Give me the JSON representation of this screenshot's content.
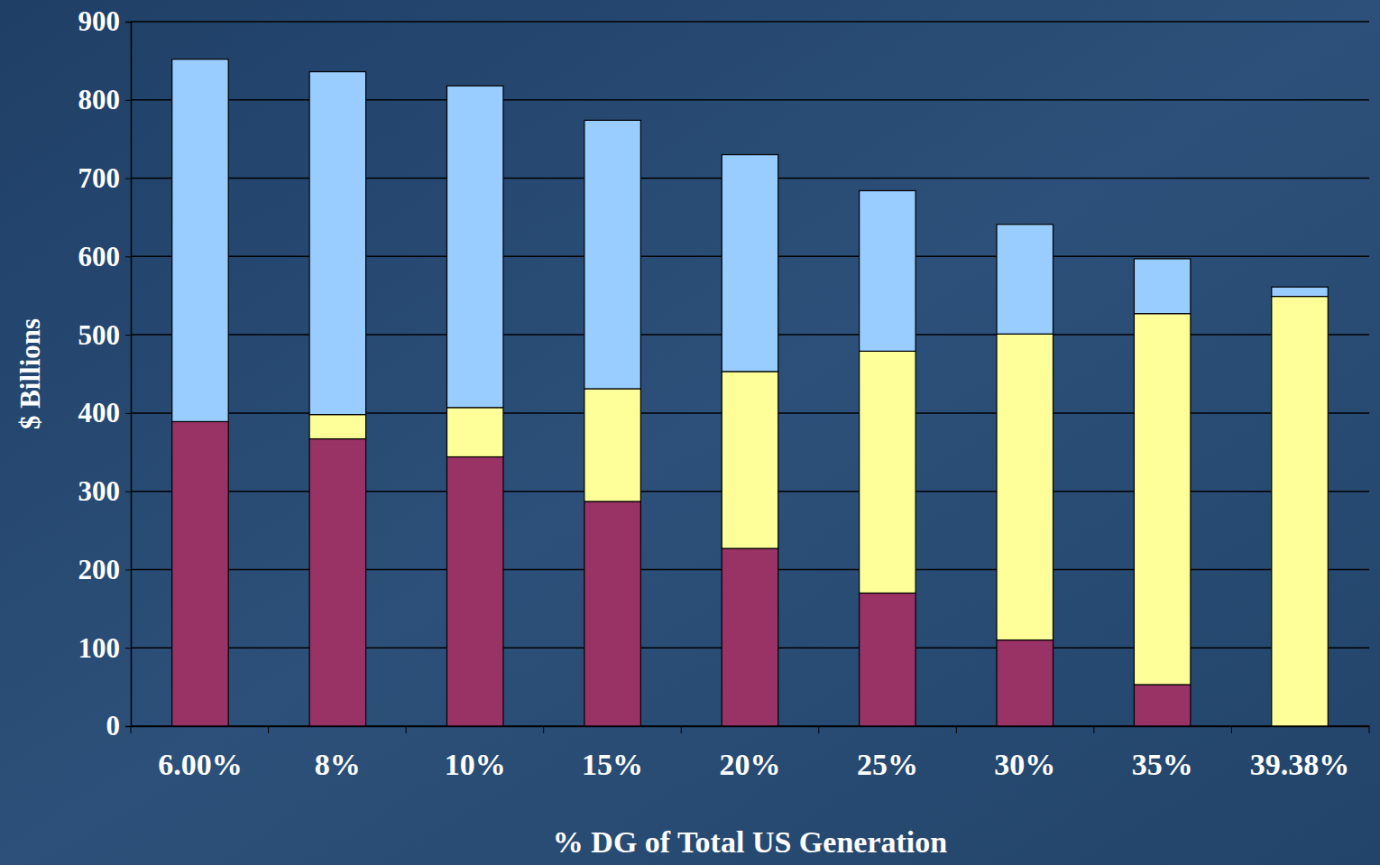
{
  "chart_data": {
    "type": "bar",
    "stacked": true,
    "grid": true,
    "x_label": "% DG of Total US Generation",
    "y_label": "$ Billions",
    "categories": [
      "6.00%",
      "8%",
      "10%",
      "15%",
      "20%",
      "25%",
      "30%",
      "35%",
      "39.38%"
    ],
    "series": [
      {
        "color": "#993366",
        "values": [
          389,
          367,
          344,
          287,
          227,
          170,
          110,
          53,
          0
        ]
      },
      {
        "color": "#ffff99",
        "values": [
          0,
          31,
          63,
          144,
          226,
          309,
          391,
          474,
          549
        ]
      },
      {
        "color": "#99ccff",
        "values": [
          463,
          438,
          411,
          343,
          277,
          205,
          140,
          70,
          12
        ]
      }
    ],
    "ylim": [
      0,
      900
    ],
    "yticks": [
      0,
      100,
      200,
      300,
      400,
      500,
      600,
      700,
      800,
      900
    ]
  }
}
